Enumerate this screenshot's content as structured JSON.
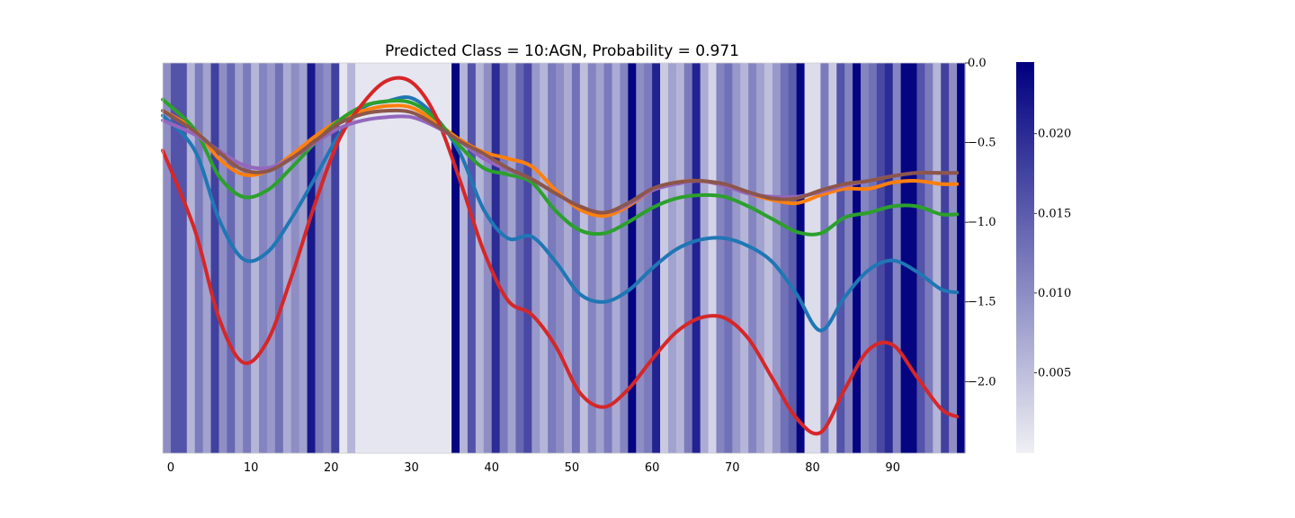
{
  "chart_data": {
    "type": "line",
    "title": "Predicted Class = 10:AGN, Probability = 0.971",
    "xlabel": "",
    "ylabel": "",
    "xlim": [
      -1,
      99
    ],
    "ylim": [
      -2.45,
      0.0
    ],
    "x_ticks": [
      0,
      10,
      20,
      30,
      40,
      50,
      60,
      70,
      80,
      90
    ],
    "x_tick_labels": [
      "0",
      "10",
      "20",
      "30",
      "40",
      "50",
      "60",
      "70",
      "80",
      "90"
    ],
    "y_ticks": [
      0.0,
      -0.5,
      -1.0,
      -1.5,
      -2.0
    ],
    "y_tick_labels": [
      "0.0",
      "−0.5",
      "−1.0",
      "−1.5",
      "−2.0"
    ],
    "grid": false,
    "legend": false,
    "heatmap_background": {
      "description_colormap": "white-to-navy",
      "vmin": 0.0,
      "vmax": 0.0245,
      "values": [
        0.01,
        0.016,
        0.016,
        0.006,
        0.012,
        0.008,
        0.018,
        0.01,
        0.014,
        0.008,
        0.012,
        0.006,
        0.011,
        0.009,
        0.013,
        0.007,
        0.01,
        0.008,
        0.022,
        0.012,
        0.01,
        0.018,
        0.001,
        0.006,
        0.001,
        0.001,
        0.001,
        0.001,
        0.001,
        0.001,
        0.001,
        0.001,
        0.001,
        0.001,
        0.001,
        0.001,
        0.024,
        0.006,
        0.016,
        0.006,
        0.01,
        0.02,
        0.012,
        0.008,
        0.014,
        0.017,
        0.009,
        0.006,
        0.012,
        0.01,
        0.007,
        0.013,
        0.005,
        0.011,
        0.008,
        0.012,
        0.007,
        0.011,
        0.024,
        0.01,
        0.012,
        0.021,
        0.004,
        0.008,
        0.006,
        0.012,
        0.021,
        0.007,
        0.003,
        0.011,
        0.013,
        0.009,
        0.006,
        0.011,
        0.008,
        0.005,
        0.009,
        0.013,
        0.015,
        0.024,
        0.002,
        0.002,
        0.012,
        0.004,
        0.016,
        0.011,
        0.024,
        0.011,
        0.013,
        0.017,
        0.02,
        0.011,
        0.024,
        0.024,
        0.016,
        0.012,
        0.006,
        0.018,
        0.01,
        0.024
      ],
      "colorbar_ticks": [
        0.005,
        0.01,
        0.015,
        0.02
      ],
      "colorbar_tick_labels": [
        "0.005",
        "0.010",
        "0.015",
        "0.020"
      ]
    },
    "series": [
      {
        "color": "#1f77b4",
        "x": [
          -1,
          3,
          6,
          9,
          12,
          15,
          18,
          21,
          24,
          27,
          30,
          33,
          36,
          39,
          42,
          45,
          48,
          51,
          54,
          57,
          60,
          63,
          66,
          69,
          72,
          75,
          78,
          81,
          84,
          87,
          90,
          93,
          96,
          98
        ],
        "y": [
          -0.33,
          -0.55,
          -0.98,
          -1.23,
          -1.19,
          -0.98,
          -0.72,
          -0.45,
          -0.28,
          -0.24,
          -0.22,
          -0.34,
          -0.56,
          -0.92,
          -1.1,
          -1.09,
          -1.25,
          -1.45,
          -1.5,
          -1.43,
          -1.29,
          -1.17,
          -1.11,
          -1.1,
          -1.15,
          -1.25,
          -1.45,
          -1.68,
          -1.47,
          -1.3,
          -1.24,
          -1.31,
          -1.42,
          -1.44
        ]
      },
      {
        "color": "#ff7f0e",
        "x": [
          -1,
          3,
          6,
          9,
          12,
          15,
          18,
          21,
          24,
          27,
          30,
          33,
          36,
          39,
          42,
          45,
          48,
          51,
          54,
          57,
          60,
          63,
          66,
          69,
          72,
          75,
          78,
          81,
          84,
          87,
          90,
          93,
          96,
          98
        ],
        "y": [
          -0.3,
          -0.42,
          -0.6,
          -0.7,
          -0.68,
          -0.58,
          -0.46,
          -0.36,
          -0.3,
          -0.27,
          -0.28,
          -0.37,
          -0.48,
          -0.56,
          -0.6,
          -0.65,
          -0.8,
          -0.92,
          -0.96,
          -0.9,
          -0.8,
          -0.75,
          -0.74,
          -0.77,
          -0.82,
          -0.86,
          -0.88,
          -0.83,
          -0.79,
          -0.79,
          -0.75,
          -0.74,
          -0.76,
          -0.76
        ]
      },
      {
        "color": "#2ca02c",
        "x": [
          -1,
          3,
          6,
          9,
          12,
          15,
          18,
          21,
          24,
          27,
          30,
          33,
          36,
          39,
          42,
          45,
          48,
          51,
          54,
          57,
          60,
          63,
          66,
          69,
          72,
          75,
          78,
          81,
          84,
          87,
          90,
          93,
          96,
          98
        ],
        "y": [
          -0.23,
          -0.42,
          -0.71,
          -0.84,
          -0.8,
          -0.66,
          -0.5,
          -0.36,
          -0.27,
          -0.24,
          -0.25,
          -0.35,
          -0.52,
          -0.66,
          -0.7,
          -0.75,
          -0.93,
          -1.05,
          -1.07,
          -1.0,
          -0.91,
          -0.85,
          -0.83,
          -0.84,
          -0.9,
          -0.98,
          -1.06,
          -1.07,
          -0.97,
          -0.94,
          -0.9,
          -0.9,
          -0.95,
          -0.95
        ]
      },
      {
        "color": "#d62728",
        "x": [
          -1,
          3,
          6,
          9,
          12,
          15,
          18,
          21,
          24,
          27,
          30,
          33,
          36,
          39,
          42,
          45,
          48,
          51,
          54,
          57,
          60,
          63,
          66,
          69,
          72,
          75,
          78,
          81,
          84,
          87,
          90,
          93,
          96,
          98
        ],
        "y": [
          -0.55,
          -1.05,
          -1.6,
          -1.88,
          -1.75,
          -1.35,
          -0.88,
          -0.48,
          -0.25,
          -0.11,
          -0.12,
          -0.33,
          -0.73,
          -1.18,
          -1.49,
          -1.58,
          -1.78,
          -2.07,
          -2.16,
          -2.05,
          -1.86,
          -1.69,
          -1.6,
          -1.6,
          -1.73,
          -1.98,
          -2.23,
          -2.32,
          -2.05,
          -1.8,
          -1.77,
          -1.97,
          -2.17,
          -2.22
        ]
      },
      {
        "color": "#9467bd",
        "x": [
          -1,
          3,
          6,
          9,
          12,
          15,
          18,
          21,
          24,
          27,
          30,
          33,
          36,
          39,
          42,
          45,
          48,
          51,
          54,
          57,
          60,
          63,
          66,
          69,
          72,
          75,
          78,
          81,
          84,
          87,
          90,
          93,
          96,
          98
        ],
        "y": [
          -0.36,
          -0.45,
          -0.55,
          -0.64,
          -0.66,
          -0.6,
          -0.5,
          -0.41,
          -0.36,
          -0.34,
          -0.34,
          -0.4,
          -0.49,
          -0.6,
          -0.67,
          -0.73,
          -0.82,
          -0.9,
          -0.94,
          -0.89,
          -0.8,
          -0.76,
          -0.74,
          -0.77,
          -0.82,
          -0.84,
          -0.84,
          -0.81,
          -0.77,
          -0.74,
          -0.71,
          -0.69,
          -0.69,
          -0.69
        ]
      },
      {
        "color": "#8c564b",
        "x": [
          -1,
          3,
          6,
          9,
          12,
          15,
          18,
          21,
          24,
          27,
          30,
          33,
          36,
          39,
          42,
          45,
          48,
          51,
          54,
          57,
          60,
          63,
          66,
          69,
          72,
          75,
          78,
          81,
          84,
          87,
          90,
          93,
          96,
          98
        ],
        "y": [
          -0.3,
          -0.43,
          -0.56,
          -0.67,
          -0.68,
          -0.6,
          -0.49,
          -0.38,
          -0.32,
          -0.3,
          -0.31,
          -0.39,
          -0.49,
          -0.57,
          -0.66,
          -0.73,
          -0.82,
          -0.9,
          -0.94,
          -0.88,
          -0.79,
          -0.75,
          -0.74,
          -0.76,
          -0.81,
          -0.85,
          -0.85,
          -0.8,
          -0.76,
          -0.74,
          -0.71,
          -0.69,
          -0.69,
          -0.69
        ]
      }
    ]
  }
}
